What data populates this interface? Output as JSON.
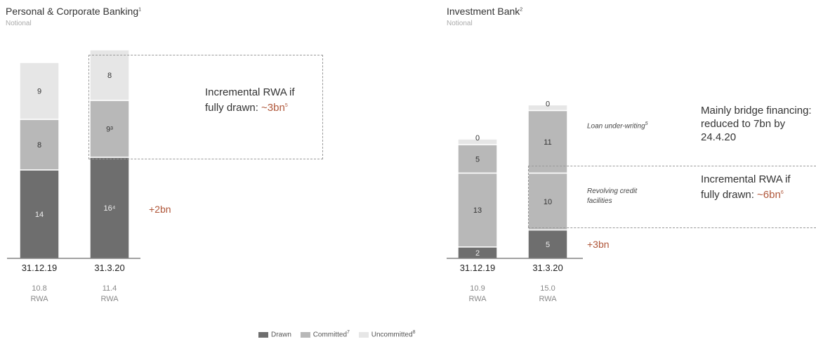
{
  "colors": {
    "drawn": "#6e6e6e",
    "committed": "#b8b8b8",
    "uncommitted": "#e6e6e6",
    "accent": "#b0573a"
  },
  "left_panel": {
    "title": "Personal & Corporate Banking",
    "title_note": "1",
    "subtitle": "Notional",
    "annotation_prefix": "Incremental RWA if fully drawn: ",
    "annotation_value": "~3bn",
    "annotation_note": "5",
    "delta": "+2bn"
  },
  "right_panel": {
    "title": "Investment Bank",
    "title_note": "2",
    "subtitle": "Notional",
    "label_loan": "Loan under-writing",
    "label_loan_note": "5",
    "label_revolving": "Revolving credit facilities",
    "annotation_top": "Mainly bridge financing: reduced to 7bn by 24.4.20",
    "annotation_prefix": "Incremental RWA if fully drawn: ",
    "annotation_value": "~6bn",
    "annotation_note": "6",
    "delta": "+3bn"
  },
  "legend": {
    "drawn": "Drawn",
    "committed": "Committed",
    "committed_note": "7",
    "uncommitted": "Uncommitted",
    "uncommitted_note": "8"
  },
  "chart_data": [
    {
      "type": "bar",
      "stacked": true,
      "title": "Personal & Corporate Banking",
      "subtitle": "Notional",
      "categories": [
        "31.12.19",
        "31.3.20"
      ],
      "series": [
        {
          "name": "Drawn",
          "values": [
            14,
            16
          ],
          "labels": [
            "14",
            "16⁴"
          ]
        },
        {
          "name": "Committed",
          "values": [
            8,
            9
          ],
          "labels": [
            "8",
            "9³"
          ]
        },
        {
          "name": "Uncommitted",
          "values": [
            9,
            8
          ],
          "labels": [
            "9",
            "8"
          ]
        }
      ],
      "rwa": [
        "10.8",
        "11.4"
      ],
      "rwa_label": "RWA"
    },
    {
      "type": "bar",
      "stacked": true,
      "title": "Investment Bank",
      "subtitle": "Notional",
      "categories": [
        "31.12.19",
        "31.3.20"
      ],
      "series": [
        {
          "name": "Drawn",
          "values": [
            2,
            5
          ],
          "labels": [
            "2",
            "5"
          ]
        },
        {
          "name": "Committed (revolving credit facilities)",
          "values": [
            13,
            10
          ],
          "labels": [
            "13",
            "10"
          ]
        },
        {
          "name": "Committed (loan underwriting)",
          "values": [
            5,
            11
          ],
          "labels": [
            "5",
            "11"
          ]
        },
        {
          "name": "Uncommitted",
          "values": [
            0,
            0
          ],
          "labels": [
            "0",
            "0"
          ]
        }
      ],
      "rwa": [
        "10.9",
        "15.0"
      ],
      "rwa_label": "RWA"
    }
  ]
}
